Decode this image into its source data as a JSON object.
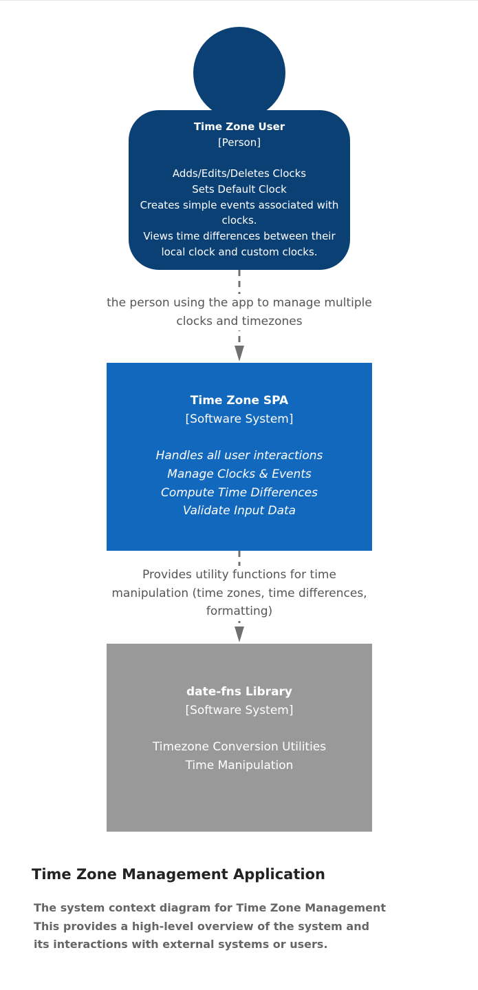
{
  "person": {
    "name": "Time Zone User",
    "type": "[Person]",
    "description": [
      "Adds/Edits/Deletes Clocks",
      "Sets Default Clock",
      "Creates simple events associated with clocks.",
      "Views time differences between their local clock and custom clocks."
    ]
  },
  "relationships": [
    {
      "label": "the person using the app to manage multiple clocks and timezones"
    },
    {
      "label": "Provides utility functions for time manipulation (time zones, time differences, formatting)"
    }
  ],
  "systems": {
    "spa": {
      "name": "Time Zone SPA",
      "type": "[Software System]",
      "description": [
        "Handles all user interactions",
        "Manage Clocks & Events",
        "Compute Time Differences",
        "Validate Input Data"
      ],
      "color": "#1168bd"
    },
    "library": {
      "name": "date-fns Library",
      "type": "[Software System]",
      "description": [
        "Timezone Conversion Utilities",
        "Time Manipulation"
      ],
      "color": "#999999"
    }
  },
  "person_color": "#0b4075",
  "footer": {
    "title": "Time Zone Management Application",
    "description": [
      "The system context diagram for Time Zone Management",
      "This provides a high-level overview of the system and",
      "its interactions with external systems or users."
    ]
  }
}
